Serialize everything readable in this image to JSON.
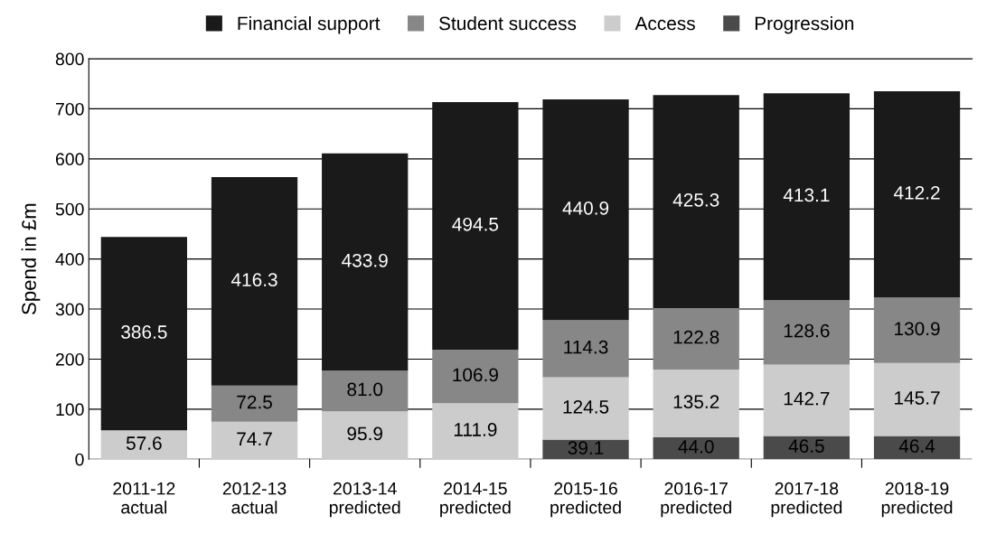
{
  "chart_data": {
    "type": "bar",
    "stacked": true,
    "ylabel": "Spend in £m",
    "categories": [
      "2011-12\nactual",
      "2012-13\nactual",
      "2013-14\npredicted",
      "2014-15\npredicted",
      "2015-16\npredicted",
      "2016-17\npredicted",
      "2017-18\npredicted",
      "2018-19\npredicted"
    ],
    "series": [
      {
        "name": "Progression",
        "color": "#4a4a4a",
        "values": [
          null,
          null,
          null,
          null,
          39.1,
          44.0,
          46.5,
          46.4
        ],
        "value_labels": [
          null,
          null,
          null,
          null,
          "39.1",
          "44.0",
          "46.5",
          "46.4"
        ]
      },
      {
        "name": "Access",
        "color": "#cccccc",
        "values": [
          57.6,
          74.7,
          95.9,
          111.9,
          124.5,
          135.2,
          142.7,
          145.7
        ],
        "value_labels": [
          "57.6",
          "74.7",
          "95.9",
          "111.9",
          "124.5",
          "135.2",
          "142.7",
          "145.7"
        ]
      },
      {
        "name": "Student success",
        "color": "#878787",
        "values": [
          null,
          72.5,
          81.0,
          106.9,
          114.3,
          122.8,
          128.6,
          130.9
        ],
        "value_labels": [
          null,
          "72.5",
          "81.0",
          "106.9",
          "114.3",
          "122.8",
          "128.6",
          "130.9"
        ]
      },
      {
        "name": "Financial support",
        "color": "#1a1a1a",
        "values": [
          386.5,
          416.3,
          433.9,
          494.5,
          440.9,
          425.3,
          413.1,
          412.2
        ],
        "value_labels": [
          "386.5",
          "416.3",
          "433.9",
          "494.5",
          "440.9",
          "425.3",
          "413.1",
          "412.2"
        ]
      }
    ],
    "ylim": [
      0,
      800
    ],
    "yticks": [
      0,
      100,
      200,
      300,
      400,
      500,
      600,
      700,
      800
    ],
    "grid": "y",
    "legend": "top"
  }
}
